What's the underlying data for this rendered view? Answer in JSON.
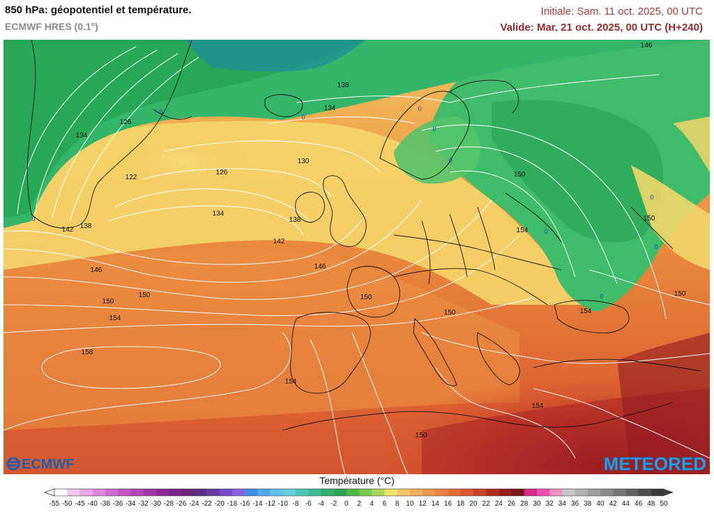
{
  "header": {
    "title": "850 hPa: géopotentiel et température.",
    "subtitle": "ECMWF HRES (0.1°)",
    "initial": "Initiale: Sam. 11 oct. 2025, 00 UTC",
    "valid": "Valide: Mar. 21 oct. 2025, 00 UTC (H+240)"
  },
  "logos": {
    "ecmwf": "ECMWF",
    "meteored": "METEORED"
  },
  "map": {
    "contour_labels": [
      "146",
      "138",
      "134",
      "126",
      "122",
      "130",
      "134",
      "126",
      "138",
      "142",
      "146",
      "150",
      "154",
      "158",
      "154",
      "150",
      "142",
      "138",
      "134",
      "146",
      "150",
      "154",
      "150",
      "150",
      "154",
      "150",
      "154",
      "150",
      "150",
      "0",
      "0",
      "0",
      "0",
      "0",
      "0",
      "0",
      "0",
      "0",
      "0"
    ],
    "isolines_style": "white"
  },
  "legend": {
    "title": "Température (°C)",
    "ticks": [
      "-55",
      "-50",
      "-45",
      "-40",
      "-38",
      "-36",
      "-34",
      "-32",
      "-30",
      "-28",
      "-26",
      "-24",
      "-22",
      "-20",
      "-18",
      "-16",
      "-14",
      "-12",
      "-10",
      "-8",
      "-6",
      "-4",
      "-2",
      "0",
      "2",
      "4",
      "6",
      "8",
      "10",
      "12",
      "14",
      "16",
      "18",
      "20",
      "22",
      "24",
      "26",
      "28",
      "30",
      "32",
      "34",
      "36",
      "38",
      "40",
      "42",
      "44",
      "46",
      "48",
      "50"
    ],
    "colors": [
      "#ffffff",
      "#f3c6ef",
      "#e7a6e4",
      "#dc88d9",
      "#cf6ccf",
      "#c356c4",
      "#b344b8",
      "#a235a9",
      "#8e2a99",
      "#7a2589",
      "#6a2477",
      "#5a2d86",
      "#6a3aa6",
      "#7a49c8",
      "#8b5fe0",
      "#3f8be6",
      "#54a8ee",
      "#5fc2ee",
      "#62d0d6",
      "#4ec6b6",
      "#3dbb96",
      "#2fae72",
      "#2ea35a",
      "#4fb748",
      "#74c84f",
      "#a7d65a",
      "#f0e06e",
      "#f3c96a",
      "#f2b05a",
      "#ef984c",
      "#eb8240",
      "#e46b36",
      "#db5530",
      "#c94028",
      "#b22e22",
      "#971d1d",
      "#7a1519",
      "#d62a8c",
      "#ef4fb0",
      "#f48ec6",
      "#c7c7c7",
      "#b3b3b3",
      "#9e9e9e",
      "#8a8a8a",
      "#757575",
      "#616161",
      "#4d4d4d",
      "#3a3a3a"
    ]
  }
}
